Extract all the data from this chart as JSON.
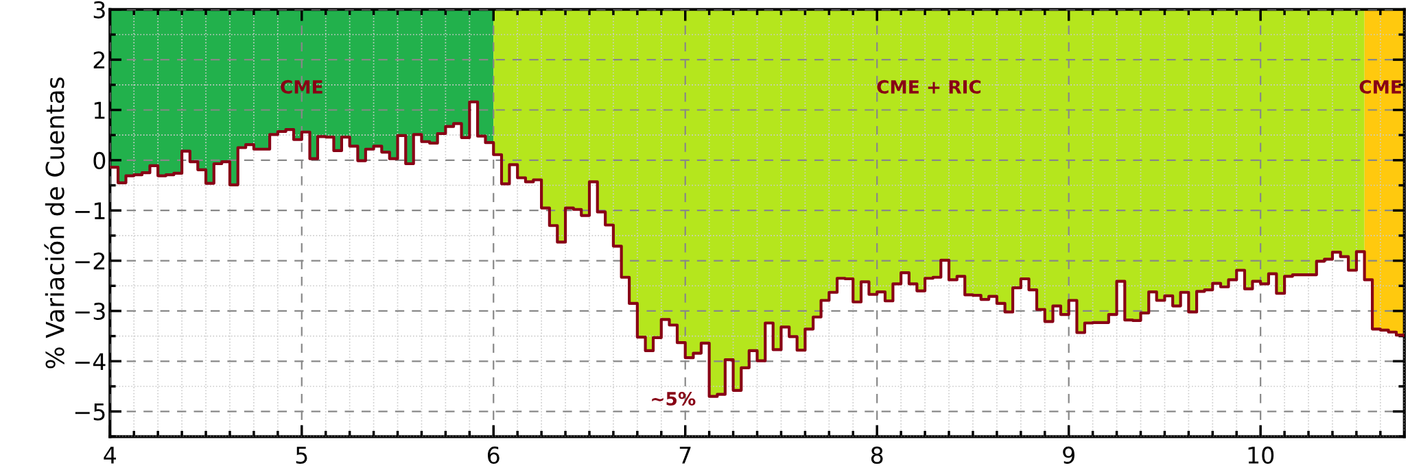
{
  "chart_data": {
    "type": "step",
    "ylabel": "% Variación de Cuentas",
    "x": [
      4.0,
      4.042,
      4.083,
      4.125,
      4.167,
      4.208,
      4.25,
      4.292,
      4.333,
      4.375,
      4.417,
      4.458,
      4.5,
      4.542,
      4.583,
      4.625,
      4.667,
      4.708,
      4.75,
      4.792,
      4.833,
      4.875,
      4.917,
      4.958,
      5.0,
      5.042,
      5.083,
      5.125,
      5.167,
      5.208,
      5.25,
      5.292,
      5.333,
      5.375,
      5.417,
      5.458,
      5.5,
      5.542,
      5.583,
      5.625,
      5.667,
      5.708,
      5.75,
      5.792,
      5.833,
      5.875,
      5.917,
      5.958,
      6.0,
      6.042,
      6.083,
      6.125,
      6.167,
      6.208,
      6.25,
      6.292,
      6.333,
      6.375,
      6.417,
      6.458,
      6.5,
      6.542,
      6.583,
      6.625,
      6.667,
      6.708,
      6.75,
      6.792,
      6.833,
      6.875,
      6.917,
      6.958,
      7.0,
      7.042,
      7.083,
      7.125,
      7.167,
      7.208,
      7.25,
      7.292,
      7.333,
      7.375,
      7.417,
      7.458,
      7.5,
      7.542,
      7.583,
      7.625,
      7.667,
      7.708,
      7.75,
      7.792,
      7.833,
      7.875,
      7.917,
      7.958,
      8.0,
      8.042,
      8.083,
      8.125,
      8.167,
      8.208,
      8.25,
      8.292,
      8.333,
      8.375,
      8.417,
      8.458,
      8.5,
      8.542,
      8.583,
      8.625,
      8.667,
      8.708,
      8.75,
      8.792,
      8.833,
      8.875,
      8.917,
      8.958,
      9.0,
      9.042,
      9.083,
      9.125,
      9.167,
      9.208,
      9.25,
      9.292,
      9.333,
      9.375,
      9.417,
      9.458,
      9.5,
      9.542,
      9.583,
      9.625,
      9.667,
      9.708,
      9.75,
      9.792,
      9.833,
      9.875,
      9.917,
      9.958,
      10.0,
      10.042,
      10.083,
      10.125,
      10.167,
      10.208,
      10.25,
      10.292,
      10.333,
      10.375,
      10.417,
      10.458,
      10.5,
      10.542,
      10.583,
      10.625,
      10.667,
      10.708,
      10.75
    ],
    "series": [
      {
        "color": "#880015",
        "values": [
          -0.14,
          -0.45,
          -0.31,
          -0.29,
          -0.25,
          -0.11,
          -0.31,
          -0.29,
          -0.26,
          0.18,
          -0.03,
          -0.19,
          -0.46,
          -0.07,
          -0.03,
          -0.49,
          0.25,
          0.31,
          0.22,
          0.22,
          0.51,
          0.57,
          0.61,
          0.41,
          0.56,
          0.03,
          0.47,
          0.46,
          0.19,
          0.46,
          0.28,
          -0.01,
          0.22,
          0.28,
          0.16,
          0.03,
          0.49,
          -0.07,
          0.51,
          0.37,
          0.34,
          0.53,
          0.67,
          0.73,
          0.45,
          1.16,
          0.48,
          0.35,
          0.11,
          -0.47,
          -0.09,
          -0.35,
          -0.43,
          -0.39,
          -0.95,
          -1.3,
          -1.63,
          -0.95,
          -0.98,
          -1.1,
          -0.43,
          -1.03,
          -1.29,
          -1.71,
          -2.33,
          -2.85,
          -3.52,
          -3.79,
          -3.53,
          -3.17,
          -3.28,
          -3.63,
          -3.93,
          -3.84,
          -3.64,
          -4.7,
          -4.66,
          -3.97,
          -4.58,
          -4.13,
          -3.79,
          -3.99,
          -3.24,
          -3.77,
          -3.32,
          -3.51,
          -3.78,
          -3.36,
          -3.12,
          -2.79,
          -2.63,
          -2.35,
          -2.36,
          -2.82,
          -2.42,
          -2.67,
          -2.62,
          -2.8,
          -2.46,
          -2.24,
          -2.46,
          -2.6,
          -2.35,
          -2.33,
          -1.99,
          -2.38,
          -2.31,
          -2.68,
          -2.69,
          -2.77,
          -2.71,
          -2.85,
          -3.02,
          -2.54,
          -2.36,
          -2.58,
          -2.97,
          -3.21,
          -2.9,
          -3.07,
          -2.79,
          -3.43,
          -3.24,
          -3.23,
          -3.23,
          -3.07,
          -2.41,
          -3.18,
          -3.19,
          -3.04,
          -2.62,
          -2.79,
          -2.7,
          -2.9,
          -2.63,
          -3.02,
          -2.61,
          -2.58,
          -2.45,
          -2.52,
          -2.38,
          -2.19,
          -2.56,
          -2.41,
          -2.46,
          -2.26,
          -2.65,
          -2.31,
          -2.28,
          -2.28,
          -2.28,
          -2.01,
          -1.97,
          -1.83,
          -1.92,
          -2.19,
          -1.82,
          -2.38,
          -3.36,
          -3.38,
          -3.42,
          -3.48,
          -3.49
        ]
      }
    ],
    "xlim": [
      4,
      10.75
    ],
    "xticks": [
      4,
      5,
      6,
      7,
      8,
      9,
      10
    ],
    "ylim": [
      -5.5,
      3
    ],
    "yticks": [
      -5,
      -4,
      -3,
      -2,
      -1,
      0,
      1,
      2,
      3
    ],
    "grid": true,
    "line_style": "solid",
    "marker": "none",
    "bands": [
      {
        "axis": "x",
        "from": 4,
        "to": 6,
        "label": "CME",
        "color": "#22b14c"
      },
      {
        "axis": "x",
        "from": 6,
        "to": 10.542,
        "label": "CME + RIC",
        "color": "#b5e61d"
      },
      {
        "axis": "x",
        "from": 10.542,
        "to": 10.75,
        "label": "CME",
        "color": "#ffc90e"
      }
    ],
    "annotations": [
      "~5%"
    ]
  }
}
